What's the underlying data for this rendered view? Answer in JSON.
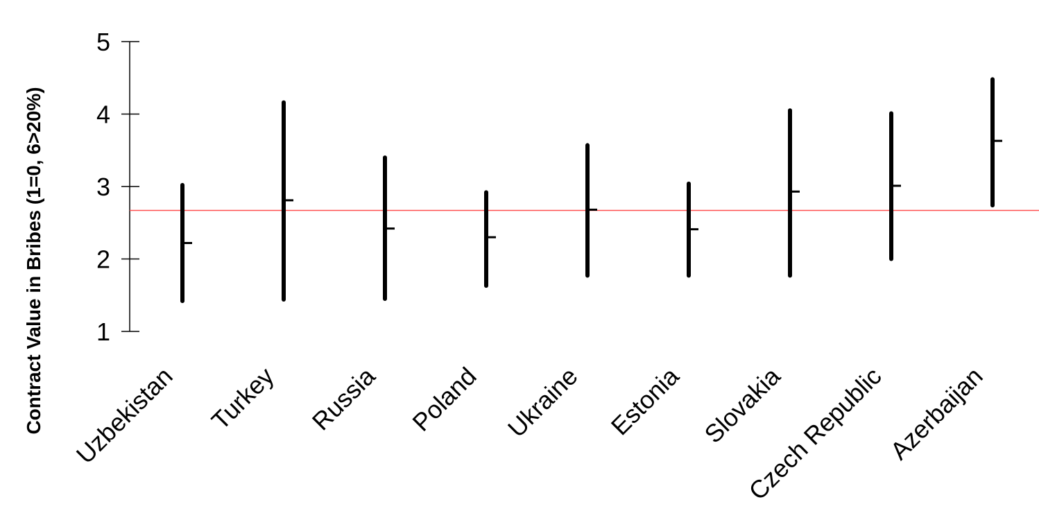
{
  "chart_data": {
    "type": "hi-lo-close",
    "title": "",
    "xlabel": "",
    "ylabel": "Contract Value  in Bribes (1=0, 6>20%)",
    "ylim": [
      1,
      5
    ],
    "yticks": [
      1,
      2,
      3,
      4,
      5
    ],
    "ytick_labels": [
      "1",
      "2",
      "3",
      "4",
      "5"
    ],
    "grid": false,
    "categories": [
      "Uzbekistan",
      "Turkey",
      "Russia",
      "Poland",
      "Ukraine",
      "Estonia",
      "Slovakia",
      "Czech Republic",
      "Azerbaijan"
    ],
    "low": [
      1.42,
      1.44,
      1.45,
      1.63,
      1.77,
      1.77,
      1.77,
      2.0,
      2.74
    ],
    "high": [
      3.02,
      4.16,
      3.4,
      2.92,
      3.57,
      3.04,
      4.05,
      4.01,
      4.48
    ],
    "mean": [
      2.22,
      2.81,
      2.42,
      2.3,
      2.68,
      2.41,
      2.93,
      3.01,
      3.63
    ],
    "reference_line": 2.67,
    "colors": {
      "bars": "#000000",
      "reference_line": "#ff4d4d"
    }
  }
}
